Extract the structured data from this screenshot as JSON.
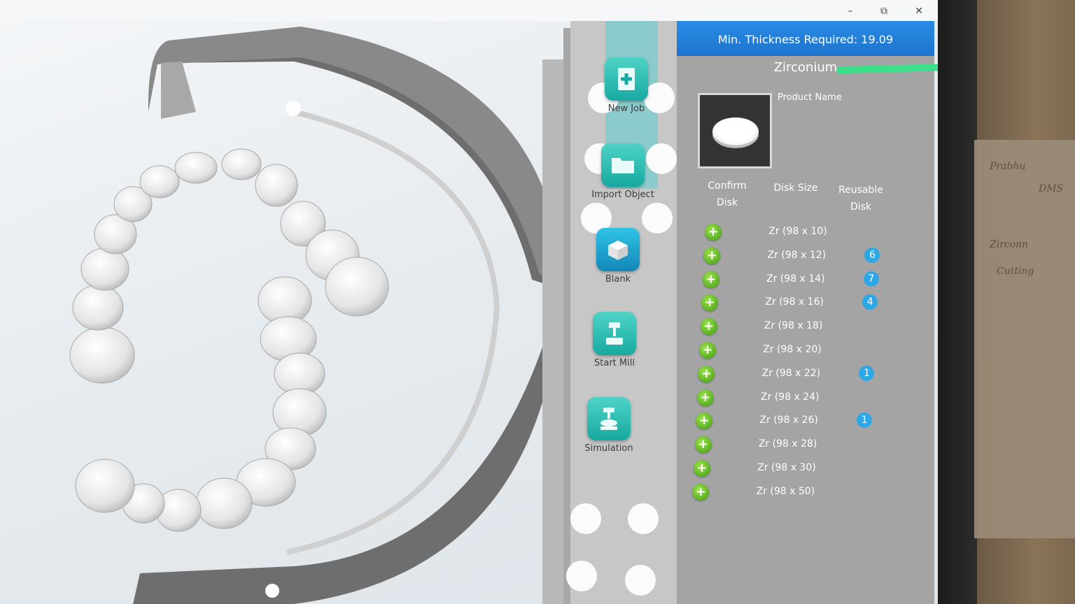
{
  "window": {
    "minimize_icon": "minimize-icon",
    "restore_icon": "restore-icon",
    "close_icon": "close-icon"
  },
  "toolbar": {
    "new_job": "New Job",
    "import_object": "Import Object",
    "blank": "Blank",
    "start_mill": "Start Mill",
    "simulation": "Simulation"
  },
  "panel": {
    "header": "Min. Thickness Required: 19.09",
    "material": "Zirconium",
    "product_name": "Product Name",
    "col_confirm_1": "Confirm",
    "col_confirm_2": "Disk",
    "col_size": "Disk Size",
    "col_reusable_1": "Reusable",
    "col_reusable_2": "Disk",
    "rows": [
      {
        "size": "Zr (98 x 10)",
        "reusable": ""
      },
      {
        "size": "Zr (98 x 12)",
        "reusable": "6"
      },
      {
        "size": "Zr (98 x 14)",
        "reusable": "7"
      },
      {
        "size": "Zr (98 x 16)",
        "reusable": "4"
      },
      {
        "size": "Zr (98 x 18)",
        "reusable": ""
      },
      {
        "size": "Zr (98 x 20)",
        "reusable": ""
      },
      {
        "size": "Zr (98 x 22)",
        "reusable": "1"
      },
      {
        "size": "Zr (98 x 24)",
        "reusable": ""
      },
      {
        "size": "Zr (98 x 26)",
        "reusable": "1"
      },
      {
        "size": "Zr (98 x 28)",
        "reusable": ""
      },
      {
        "size": "Zr (98 x 30)",
        "reusable": ""
      },
      {
        "size": "Zr (98 x 50)",
        "reusable": ""
      }
    ]
  },
  "desk_notes": [
    "Prabhu",
    "DMS",
    "Zirconn",
    "Cutting"
  ]
}
